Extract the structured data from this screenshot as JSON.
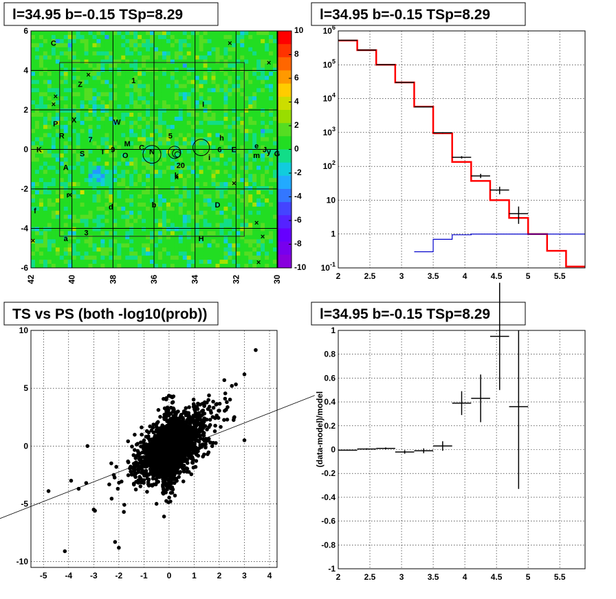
{
  "panels": {
    "map": {
      "title": "l=34.95 b=-0.15 TSp=8.29",
      "x_ticks": [
        "42",
        "40",
        "38",
        "36",
        "34",
        "32",
        "30"
      ],
      "y_ticks": [
        "6",
        "4",
        "2",
        "0",
        "-2",
        "-4",
        "-6"
      ],
      "colorbar_ticks": [
        "10",
        "8",
        "6",
        "4",
        "2",
        "0",
        "-2",
        "-4",
        "-6",
        "-8",
        "-10"
      ],
      "source_labels": [
        "C",
        "Z",
        "1",
        "I",
        "X",
        "W",
        "P",
        "R",
        "7",
        "M",
        "5",
        "h",
        "K",
        "S",
        "T",
        "9",
        "O",
        "C",
        "N",
        "6",
        "E",
        "e",
        "J",
        "y",
        "G",
        "A",
        "20",
        "i",
        "m",
        "r",
        "k",
        "b",
        "D",
        "d",
        "f",
        "3",
        "a",
        "H"
      ]
    },
    "spectrum": {
      "title": "l=34.95 b=-0.15 TSp=8.29",
      "x_ticks": [
        "2",
        "2.5",
        "3",
        "3.5",
        "4",
        "4.5",
        "5",
        "5.5"
      ],
      "y_ticks": [
        "10^6",
        "10^5",
        "10^4",
        "10^3",
        "10^2",
        "10",
        "1",
        "10^-1"
      ]
    },
    "scatter": {
      "title": "TS vs PS (both -log10(prob))",
      "x_ticks": [
        "-5",
        "-4",
        "-3",
        "-2",
        "-1",
        "0",
        "1",
        "2",
        "3",
        "4"
      ],
      "y_ticks": [
        "10",
        "5",
        "0",
        "-5",
        "-10"
      ]
    },
    "residual": {
      "title": "l=34.95 b=-0.15 TSp=8.29",
      "ylabel": "(data-model)/model",
      "x_ticks": [
        "2",
        "2.5",
        "3",
        "3.5",
        "4",
        "4.5",
        "5",
        "5.5"
      ],
      "y_ticks": [
        "1",
        "0.8",
        "0.6",
        "0.4",
        "0.2",
        "0",
        "-0.2",
        "-0.4",
        "-0.6",
        "-0.8",
        "-1"
      ]
    }
  },
  "colors": {
    "model_line": "#ff0000",
    "background_line": "#0000cc",
    "map_base": "#22dd22"
  },
  "chart_data": [
    {
      "type": "heatmap",
      "title": "l=34.95 b=-0.15 TSp=8.29",
      "xlim": [
        42,
        30
      ],
      "ylim": [
        -6,
        6
      ],
      "zlim": [
        -10,
        10
      ],
      "note_values": "mostly near 0 with small positive and negative fluctuations; negative patch near l=38.5 b=-1.2"
    },
    {
      "type": "line",
      "title": "l=34.95 b=-0.15 TSp=8.29",
      "xlim": [
        2,
        5.9
      ],
      "ylim": [
        0.1,
        1000000
      ],
      "log_y": true,
      "grid": true,
      "series": [
        {
          "kind": "step",
          "x_edges": [
            2,
            2.3,
            2.6,
            2.9,
            3.2,
            3.5,
            3.8,
            4.1,
            4.4,
            4.7,
            5.0,
            5.3,
            5.6,
            5.9
          ],
          "values": [
            520000,
            270000,
            100000,
            30000,
            5800,
            950,
            135,
            37,
            10,
            3,
            1,
            0.32,
            0.11
          ]
        },
        {
          "kind": "step",
          "x_edges": [
            3.2,
            3.5,
            3.8,
            4.1,
            4.4,
            4.7,
            5.0,
            5.3,
            5.6,
            5.9
          ],
          "values": [
            0.3,
            0.7,
            0.95,
            1,
            1,
            1,
            1,
            1,
            1
          ]
        },
        {
          "kind": "errorbars",
          "points": [
            {
              "x": 2.15,
              "y": 530000,
              "xerr": 0.15,
              "ylo": 520000,
              "yhi": 540000
            },
            {
              "x": 2.45,
              "y": 272000,
              "xerr": 0.15,
              "ylo": 268000,
              "yhi": 276000
            },
            {
              "x": 2.75,
              "y": 101000,
              "xerr": 0.15,
              "ylo": 99000,
              "yhi": 103000
            },
            {
              "x": 3.05,
              "y": 30000,
              "xerr": 0.15,
              "ylo": 29500,
              "yhi": 30500
            },
            {
              "x": 3.35,
              "y": 5700,
              "xerr": 0.15,
              "ylo": 5550,
              "yhi": 5850
            },
            {
              "x": 3.65,
              "y": 980,
              "xerr": 0.15,
              "ylo": 940,
              "yhi": 1020
            },
            {
              "x": 3.95,
              "y": 185,
              "xerr": 0.15,
              "ylo": 170,
              "yhi": 200
            },
            {
              "x": 4.25,
              "y": 52,
              "xerr": 0.15,
              "ylo": 45,
              "yhi": 60
            },
            {
              "x": 4.55,
              "y": 20,
              "xerr": 0.15,
              "ylo": 15,
              "yhi": 25
            },
            {
              "x": 4.85,
              "y": 4,
              "xerr": 0.15,
              "ylo": 2,
              "yhi": 6.5
            }
          ]
        }
      ]
    },
    {
      "type": "scatter",
      "title": "TS vs PS (both -log10(prob))",
      "xlim": [
        -5.5,
        4.3
      ],
      "ylim": [
        -10.5,
        10
      ],
      "grid": true,
      "fit_line": {
        "slope": 0.85,
        "intercept": -0.55
      },
      "outliers": [
        {
          "x": 3.45,
          "y": 8.3
        },
        {
          "x": 3.0,
          "y": 6.2
        },
        {
          "x": -4.15,
          "y": -9.1
        },
        {
          "x": -2.15,
          "y": -8.3
        },
        {
          "x": -2.0,
          "y": -8.8
        },
        {
          "x": -4.8,
          "y": -3.9
        },
        {
          "x": -3.9,
          "y": -3.0
        },
        {
          "x": -3.6,
          "y": -3.7
        },
        {
          "x": -3.3,
          "y": -3.2
        },
        {
          "x": -3.25,
          "y": 0.0
        },
        {
          "x": -3.0,
          "y": -5.5
        },
        {
          "x": -2.95,
          "y": -5.6
        },
        {
          "x": -1.8,
          "y": -5.7
        },
        {
          "x": -2.3,
          "y": -1.5
        },
        {
          "x": -2.2,
          "y": -2.5
        },
        {
          "x": -2.1,
          "y": -1.8
        },
        {
          "x": 2.2,
          "y": 5.7
        },
        {
          "x": 2.5,
          "y": 5.2
        },
        {
          "x": 2.3,
          "y": 3.8
        },
        {
          "x": 2.6,
          "y": 2.5
        },
        {
          "x": 3.0,
          "y": 0.5
        },
        {
          "x": -0.2,
          "y": -6.1
        },
        {
          "x": -0.5,
          "y": -5.0
        },
        {
          "x": 1.0,
          "y": 3.5
        }
      ],
      "core_cloud": {
        "x_center": 0.1,
        "y_center": -0.2,
        "x_spread": 0.55,
        "y_spread": 1.6
      }
    },
    {
      "type": "scatter",
      "title": "l=34.95 b=-0.15 TSp=8.29",
      "ylabel": "(data-model)/model",
      "xlim": [
        2,
        5.9
      ],
      "ylim": [
        -1,
        1
      ],
      "grid": true,
      "points": [
        {
          "x": 2.15,
          "y": -0.005,
          "xerr": 0.15,
          "yerr": 0.004
        },
        {
          "x": 2.45,
          "y": 0.005,
          "xerr": 0.15,
          "yerr": 0.006
        },
        {
          "x": 2.75,
          "y": 0.01,
          "xerr": 0.15,
          "yerr": 0.008
        },
        {
          "x": 3.05,
          "y": -0.02,
          "xerr": 0.15,
          "yerr": 0.015
        },
        {
          "x": 3.35,
          "y": -0.01,
          "xerr": 0.15,
          "yerr": 0.02
        },
        {
          "x": 3.65,
          "y": 0.03,
          "xerr": 0.15,
          "yerr": 0.04
        },
        {
          "x": 3.95,
          "y": 0.39,
          "xerr": 0.15,
          "yerr": 0.1
        },
        {
          "x": 4.25,
          "y": 0.43,
          "xerr": 0.15,
          "yerr": 0.2
        },
        {
          "x": 4.55,
          "y": 0.95,
          "xerr": 0.15,
          "yerr": 0.45
        },
        {
          "x": 4.85,
          "y": 0.36,
          "xerr": 0.15,
          "ylo": -0.33,
          "yhi": 1.0
        }
      ]
    }
  ]
}
